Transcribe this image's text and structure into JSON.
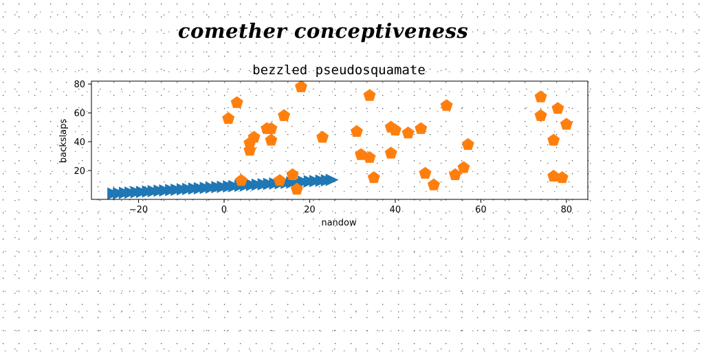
{
  "suptitle": "comether conceptiveness",
  "chart_data": {
    "type": "scatter",
    "title": "bezzled pseudosquamate",
    "xlabel": "nandow",
    "ylabel": "backslaps",
    "xlim": [
      -31,
      85
    ],
    "ylim": [
      0,
      82
    ],
    "xticks": [
      -20,
      0,
      20,
      40,
      60,
      80
    ],
    "yticks": [
      20,
      40,
      60,
      80
    ],
    "xtick_labels": [
      "−20",
      "0",
      "20",
      "40",
      "60",
      "80"
    ],
    "ytick_labels": [
      "20",
      "40",
      "60",
      "80"
    ],
    "grid": false,
    "series": [
      {
        "marker": "triangle-right",
        "color": "#1f77b4",
        "x": [
          -26,
          -24.7,
          -23.3,
          -22,
          -20.6,
          -19.3,
          -17.9,
          -16.6,
          -15.2,
          -13.9,
          -12.5,
          -11.2,
          -9.8,
          -8.5,
          -7.1,
          -5.8,
          -4.4,
          -3.1,
          -1.7,
          -0.4,
          1,
          2.3,
          3.7,
          5,
          6.4,
          7.7,
          9.1,
          10.4,
          11.8,
          13.1,
          14.5,
          15.8,
          17.2,
          18.5,
          19.9,
          21.2,
          22.6,
          23.9,
          25
        ],
        "y": [
          4,
          4.2,
          4.5,
          4.7,
          5,
          5.2,
          5.5,
          5.7,
          6,
          6.2,
          6.5,
          6.7,
          7,
          7.2,
          7.5,
          7.7,
          8,
          8.2,
          8.5,
          8.7,
          9,
          9.2,
          9.5,
          9.7,
          10,
          10.2,
          10.5,
          10.7,
          11,
          11.2,
          11.5,
          11.7,
          12,
          12.2,
          12.5,
          12.7,
          13,
          13.2,
          13.5
        ]
      },
      {
        "marker": "pentagon",
        "color": "#ff7f0e",
        "x": [
          1,
          3,
          6,
          6,
          7,
          10,
          11,
          11,
          14,
          18,
          4,
          13,
          16,
          17,
          23,
          31,
          32,
          34,
          34,
          35,
          39,
          39,
          40,
          43,
          46,
          47,
          49,
          52,
          54,
          56,
          57,
          74,
          74,
          77,
          77,
          78,
          79,
          80
        ],
        "y": [
          56,
          67,
          39,
          34,
          43,
          49,
          49,
          41,
          58,
          78,
          13,
          13,
          17,
          7,
          43,
          47,
          31,
          72,
          29,
          15,
          32,
          50,
          48,
          46,
          49,
          18,
          10,
          65,
          17,
          22,
          38,
          71,
          58,
          41,
          16,
          63,
          15,
          52
        ]
      }
    ]
  }
}
